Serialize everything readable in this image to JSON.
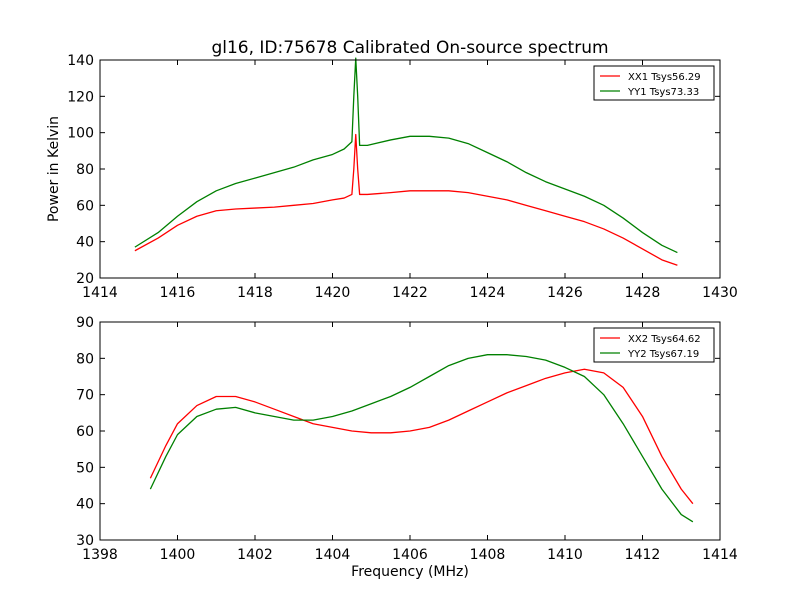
{
  "chart_data": [
    {
      "type": "line",
      "title": "gl16, ID:75678 Calibrated On-source spectrum",
      "xlabel": "",
      "ylabel": "Power in Kelvin",
      "xlim": [
        1414,
        1430
      ],
      "ylim": [
        20,
        140
      ],
      "xticks": [
        1414,
        1416,
        1418,
        1420,
        1422,
        1424,
        1426,
        1428,
        1430
      ],
      "yticks": [
        20,
        40,
        60,
        80,
        100,
        120,
        140
      ],
      "legend_position": "top-right",
      "series": [
        {
          "name": "XX1 Tsys56.29",
          "color": "#ff0000",
          "x": [
            1414.9,
            1415.5,
            1416.0,
            1416.5,
            1417.0,
            1417.5,
            1418.0,
            1418.5,
            1419.0,
            1419.5,
            1420.0,
            1420.3,
            1420.5,
            1420.55,
            1420.6,
            1420.65,
            1420.7,
            1420.9,
            1421.5,
            1422.0,
            1422.5,
            1423.0,
            1423.5,
            1424.0,
            1424.5,
            1425.0,
            1425.5,
            1426.0,
            1426.5,
            1427.0,
            1427.5,
            1428.0,
            1428.5,
            1428.9
          ],
          "y": [
            35,
            42,
            49,
            54,
            57,
            58,
            58.5,
            59,
            60,
            61,
            63,
            64,
            66,
            80,
            99,
            80,
            66,
            66,
            67,
            68,
            68,
            68,
            67,
            65,
            63,
            60,
            57,
            54,
            51,
            47,
            42,
            36,
            30,
            27
          ]
        },
        {
          "name": "YY1 Tsys73.33",
          "color": "#008000",
          "x": [
            1414.9,
            1415.5,
            1416.0,
            1416.5,
            1417.0,
            1417.5,
            1418.0,
            1418.5,
            1419.0,
            1419.5,
            1420.0,
            1420.3,
            1420.5,
            1420.55,
            1420.6,
            1420.65,
            1420.7,
            1420.9,
            1421.5,
            1422.0,
            1422.5,
            1423.0,
            1423.5,
            1424.0,
            1424.5,
            1425.0,
            1425.5,
            1426.0,
            1426.5,
            1427.0,
            1427.5,
            1428.0,
            1428.5,
            1428.9
          ],
          "y": [
            37,
            45,
            54,
            62,
            68,
            72,
            75,
            78,
            81,
            85,
            88,
            91,
            95,
            120,
            141,
            120,
            93,
            93,
            96,
            98,
            98,
            97,
            94,
            89,
            84,
            78,
            73,
            69,
            65,
            60,
            53,
            45,
            38,
            34
          ]
        }
      ]
    },
    {
      "type": "line",
      "title": "",
      "xlabel": "Frequency (MHz)",
      "ylabel": "",
      "xlim": [
        1398,
        1414
      ],
      "ylim": [
        30,
        90
      ],
      "xticks": [
        1398,
        1400,
        1402,
        1404,
        1406,
        1408,
        1410,
        1412,
        1414
      ],
      "yticks": [
        30,
        40,
        50,
        60,
        70,
        80,
        90
      ],
      "legend_position": "top-right",
      "series": [
        {
          "name": "XX2 Tsys64.62",
          "color": "#ff0000",
          "x": [
            1399.3,
            1399.7,
            1400.0,
            1400.5,
            1401.0,
            1401.5,
            1402.0,
            1402.5,
            1403.0,
            1403.5,
            1404.0,
            1404.5,
            1405.0,
            1405.5,
            1406.0,
            1406.5,
            1407.0,
            1407.5,
            1408.0,
            1408.5,
            1409.0,
            1409.5,
            1410.0,
            1410.5,
            1411.0,
            1411.5,
            1412.0,
            1412.5,
            1413.0,
            1413.3
          ],
          "y": [
            47,
            56,
            62,
            67,
            69.5,
            69.5,
            68,
            66,
            64,
            62,
            61,
            60,
            59.5,
            59.5,
            60,
            61,
            63,
            65.5,
            68,
            70.5,
            72.5,
            74.5,
            76,
            77,
            76,
            72,
            64,
            53,
            44,
            40
          ]
        },
        {
          "name": "YY2 Tsys67.19",
          "color": "#008000",
          "x": [
            1399.3,
            1399.7,
            1400.0,
            1400.5,
            1401.0,
            1401.5,
            1402.0,
            1402.5,
            1403.0,
            1403.5,
            1404.0,
            1404.5,
            1405.0,
            1405.5,
            1406.0,
            1406.5,
            1407.0,
            1407.5,
            1408.0,
            1408.5,
            1409.0,
            1409.5,
            1410.0,
            1410.5,
            1411.0,
            1411.5,
            1412.0,
            1412.5,
            1413.0,
            1413.3
          ],
          "y": [
            44,
            53,
            59,
            64,
            66,
            66.5,
            65,
            64,
            63,
            63,
            64,
            65.5,
            67.5,
            69.5,
            72,
            75,
            78,
            80,
            81,
            81,
            80.5,
            79.5,
            77.5,
            75,
            70,
            62,
            53,
            44,
            37,
            35
          ]
        }
      ]
    }
  ]
}
